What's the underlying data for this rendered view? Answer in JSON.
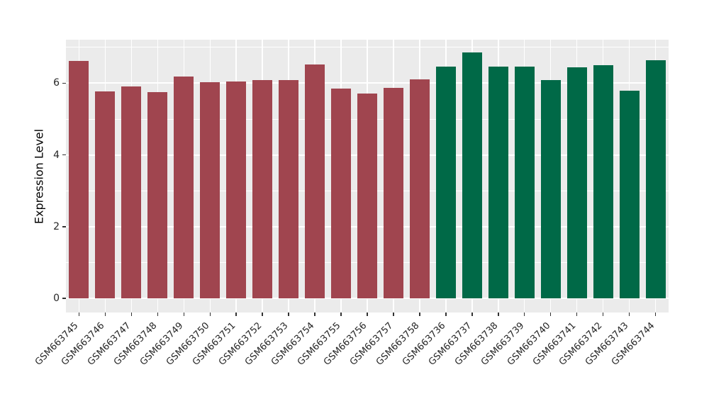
{
  "chart_data": {
    "type": "bar",
    "title": "",
    "xlabel": "",
    "ylabel": "Expression Level",
    "yticks": [
      0,
      2,
      4,
      6
    ],
    "minor_yticks": [
      1,
      3,
      5,
      7
    ],
    "ylim": [
      -0.38,
      7.21
    ],
    "legend_position": "none",
    "grid": true,
    "panel_background": "#EBEBEB",
    "grid_color": "#FFFFFF",
    "tick_color": "#333333",
    "group_colors": {
      "left_group": "#A0454F",
      "right_group": "#006947"
    },
    "categories": [
      "GSM663745",
      "GSM663746",
      "GSM663747",
      "GSM663748",
      "GSM663749",
      "GSM663750",
      "GSM663751",
      "GSM663752",
      "GSM663753",
      "GSM663754",
      "GSM663755",
      "GSM663756",
      "GSM663757",
      "GSM663758",
      "GSM663736",
      "GSM663737",
      "GSM663738",
      "GSM663739",
      "GSM663740",
      "GSM663741",
      "GSM663742",
      "GSM663743",
      "GSM663744"
    ],
    "values": [
      6.62,
      5.77,
      5.9,
      5.75,
      6.19,
      6.03,
      6.05,
      6.08,
      6.08,
      6.53,
      5.85,
      5.71,
      5.86,
      6.1,
      6.46,
      6.86,
      6.46,
      6.46,
      6.08,
      6.45,
      6.5,
      5.79,
      6.64
    ],
    "colors": [
      "#A0454F",
      "#A0454F",
      "#A0454F",
      "#A0454F",
      "#A0454F",
      "#A0454F",
      "#A0454F",
      "#A0454F",
      "#A0454F",
      "#A0454F",
      "#A0454F",
      "#A0454F",
      "#A0454F",
      "#A0454F",
      "#006947",
      "#006947",
      "#006947",
      "#006947",
      "#006947",
      "#006947",
      "#006947",
      "#006947",
      "#006947"
    ]
  }
}
